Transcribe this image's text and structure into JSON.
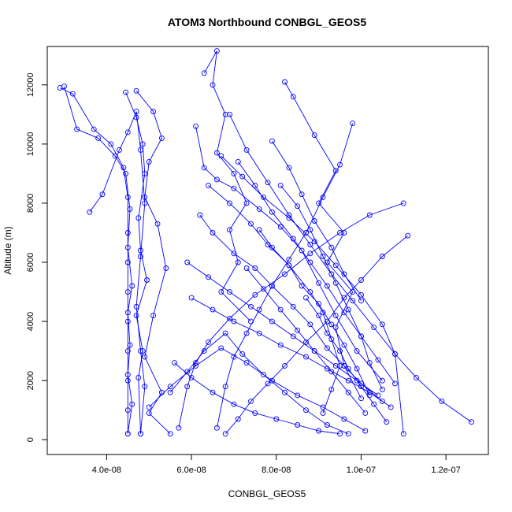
{
  "chart_data": {
    "type": "scatter",
    "title": "ATOM3 Northbound CONBGL_GEOS5",
    "xlabel": "CONBGL_GEOS5",
    "ylabel": "Altitude (m)",
    "xlim": [
      2.6e-08,
      1.3e-07
    ],
    "ylim": [
      -500,
      13300
    ],
    "x_ticks": [
      {
        "value": 4e-08,
        "label": "4.0e-08"
      },
      {
        "value": 6e-08,
        "label": "6.0e-08"
      },
      {
        "value": 8e-08,
        "label": "8.0e-08"
      },
      {
        "value": 1e-07,
        "label": "1.0e-07"
      },
      {
        "value": 1.2e-07,
        "label": "1.2e-07"
      }
    ],
    "y_ticks": [
      {
        "value": 0,
        "label": "0"
      },
      {
        "value": 2000,
        "label": "2000"
      },
      {
        "value": 4000,
        "label": "4000"
      },
      {
        "value": 6000,
        "label": "6000"
      },
      {
        "value": 8000,
        "label": "8000"
      },
      {
        "value": 10000,
        "label": "10000"
      },
      {
        "value": 12000,
        "label": "12000"
      }
    ],
    "grid": false,
    "marker": "open-circle",
    "connected": true,
    "color": "#0000ff",
    "series": [
      {
        "x": [
          2.9e-08,
          3.2e-08,
          3.7e-08,
          4.1e-08,
          4.4e-08,
          4.5e-08,
          4.5e-08,
          4.5e-08,
          4.5e-08,
          4.5e-08,
          4.5e-08,
          4.5e-08,
          4.5e-08,
          4.5e-08
        ],
        "y": [
          11900,
          11700,
          10500,
          10000,
          9200,
          8200,
          7000,
          6000,
          5000,
          4000,
          3000,
          2000,
          1000,
          200
        ]
      },
      {
        "x": [
          3e-08,
          3.3e-08,
          3.8e-08,
          4.2e-08,
          4.45e-08,
          4.55e-08,
          4.5e-08,
          4.6e-08,
          4.5e-08,
          4.55e-08,
          4.5e-08,
          4.6e-08,
          4.5e-08
        ],
        "y": [
          11950,
          10500,
          10200,
          9600,
          9000,
          7800,
          6500,
          5200,
          4300,
          3200,
          2200,
          1200,
          200
        ]
      },
      {
        "x": [
          3.6e-08,
          3.9e-08,
          4.3e-08,
          4.5e-08,
          4.7e-08,
          4.8e-08,
          4.9e-08,
          4.8e-08,
          4.7e-08,
          4.8e-08,
          4.9e-08,
          4.8e-08
        ],
        "y": [
          7700,
          8300,
          9800,
          10400,
          11100,
          9800,
          8000,
          6200,
          4500,
          3000,
          1800,
          200
        ]
      },
      {
        "x": [
          4.45e-08,
          4.7e-08,
          4.85e-08,
          4.9e-08,
          4.75e-08,
          4.8e-08,
          4.95e-08,
          4.7e-08,
          4.85e-08,
          4.75e-08,
          4.8e-08
        ],
        "y": [
          11750,
          10900,
          10000,
          9000,
          7500,
          6400,
          5400,
          4200,
          3000,
          2100,
          200
        ]
      },
      {
        "x": [
          4.7e-08,
          5.1e-08,
          5.3e-08,
          5e-08,
          4.9e-08,
          5.2e-08,
          5.4e-08,
          5.1e-08,
          4.9e-08,
          5.3e-08,
          5e-08,
          5.5e-08
        ],
        "y": [
          11800,
          11100,
          10200,
          9400,
          8200,
          7300,
          5800,
          4200,
          2800,
          1600,
          900,
          200
        ]
      },
      {
        "x": [
          6.3e-08,
          6.6e-08,
          6.5e-08,
          6.8e-08,
          6.6e-08,
          7e-08,
          7.3e-08,
          6.9e-08,
          7.1e-08,
          6.7e-08,
          7.4e-08
        ],
        "y": [
          12400,
          13150,
          12000,
          11000,
          9700,
          9000,
          8000,
          7100,
          6000,
          5000,
          4000
        ]
      },
      {
        "x": [
          6.1e-08,
          6.3e-08,
          6.6e-08,
          7e-08,
          7.6e-08,
          8.1e-08,
          8.6e-08,
          9e-08,
          9.4e-08,
          9.9e-08,
          1.05e-07
        ],
        "y": [
          10600,
          9200,
          8800,
          8500,
          7800,
          7200,
          6400,
          5300,
          4200,
          3000,
          2000
        ]
      },
      {
        "x": [
          6.9e-08,
          7.3e-08,
          7.8e-08,
          8.3e-08,
          8.8e-08,
          9.3e-08,
          9.8e-08,
          1.03e-07,
          1.08e-07,
          1.13e-07,
          1.19e-07,
          1.26e-07
        ],
        "y": [
          11000,
          9800,
          8700,
          7600,
          6600,
          5600,
          4700,
          3800,
          2900,
          2100,
          1300,
          600
        ]
      },
      {
        "x": [
          8.2e-08,
          8.4e-08,
          8.9e-08,
          9.4e-08,
          9e-08,
          9.6e-08,
          9.2e-08,
          9.8e-08,
          9.4e-08,
          9.6e-08,
          1e-07
        ],
        "y": [
          12100,
          11600,
          10300,
          9100,
          8000,
          7000,
          6000,
          5000,
          3800,
          2500,
          1400
        ]
      },
      {
        "x": [
          9.8e-08,
          9.5e-08,
          9.1e-08,
          8.7e-08,
          8.3e-08,
          7.9e-08,
          7.6e-08,
          7.3e-08,
          7e-08,
          6.8e-08,
          6.6e-08
        ],
        "y": [
          10700,
          9300,
          8200,
          7000,
          6100,
          5200,
          4400,
          3600,
          2800,
          1800,
          400
        ]
      },
      {
        "x": [
          1.1e-07,
          1.02e-07,
          9.5e-08,
          8.8e-08,
          8.2e-08,
          7.5e-08,
          6.9e-08,
          6.4e-08,
          6.1e-08,
          5.9e-08,
          5.7e-08
        ],
        "y": [
          8000,
          7600,
          7000,
          6300,
          5600,
          4900,
          4100,
          3300,
          2600,
          1800,
          400
        ]
      },
      {
        "x": [
          1.11e-07,
          1.05e-07,
          1e-07,
          9.6e-08,
          9.2e-08,
          8.7e-08,
          8.2e-08,
          7.8e-08,
          7.4e-08,
          7.1e-08,
          6.8e-08
        ],
        "y": [
          6900,
          6200,
          5400,
          4800,
          4000,
          3300,
          2500,
          1900,
          1300,
          700,
          200
        ]
      },
      {
        "x": [
          6.7e-08,
          7.2e-08,
          7.7e-08,
          8.3e-08,
          8.9e-08,
          9.4e-08,
          1e-07,
          1.05e-07,
          1.08e-07,
          1.1e-07
        ],
        "y": [
          9600,
          8900,
          8200,
          7500,
          6700,
          5900,
          4900,
          3900,
          2900,
          200
        ]
      },
      {
        "x": [
          6.4e-08,
          6.9e-08,
          7.4e-08,
          7.8e-08,
          8.3e-08,
          8.8e-08,
          9.1e-08,
          9.3e-08,
          9.5e-08,
          9.3e-08,
          9.1e-08
        ],
        "y": [
          8600,
          8000,
          7300,
          6600,
          5900,
          5000,
          4300,
          3400,
          2500,
          1700,
          900
        ]
      },
      {
        "x": [
          6.2e-08,
          6.5e-08,
          7e-08,
          7.5e-08,
          7.9e-08,
          8.4e-08,
          8.8e-08,
          9.2e-08,
          9.6e-08,
          1e-07,
          1.05e-07
        ],
        "y": [
          7600,
          7000,
          6300,
          5800,
          5200,
          4500,
          3900,
          3100,
          2500,
          1900,
          1300
        ]
      },
      {
        "x": [
          5.9e-08,
          6.4e-08,
          6.9e-08,
          7.4e-08,
          7.9e-08,
          8.4e-08,
          8.9e-08,
          9.4e-08,
          9.9e-08,
          1.04e-07
        ],
        "y": [
          6000,
          5500,
          5000,
          4500,
          4000,
          3500,
          3000,
          2500,
          2000,
          1500
        ]
      },
      {
        "x": [
          6e-08,
          6.5e-08,
          7e-08,
          7.6e-08,
          8.1e-08,
          8.7e-08,
          9.2e-08,
          9.7e-08,
          1.02e-07,
          1.07e-07
        ],
        "y": [
          4800,
          4400,
          4000,
          3600,
          3200,
          2800,
          2400,
          2000,
          1600,
          1100
        ]
      },
      {
        "x": [
          5.5e-08,
          5.9e-08,
          6.3e-08,
          6.8e-08,
          7.2e-08,
          7.7e-08,
          8.2e-08,
          8.7e-08,
          9.2e-08,
          9.7e-08
        ],
        "y": [
          1600,
          2300,
          3000,
          3600,
          2900,
          2200,
          1600,
          1000,
          500,
          200
        ]
      },
      {
        "x": [
          5e-08,
          5.5e-08,
          6.1e-08,
          6.7e-08,
          7.3e-08,
          7.9e-08,
          8.5e-08,
          9.1e-08,
          9.6e-08,
          1.01e-07
        ],
        "y": [
          1100,
          1800,
          2500,
          3100,
          2600,
          2000,
          1500,
          1100,
          700,
          300
        ]
      },
      {
        "x": [
          7.1e-08,
          7.5e-08,
          7.9e-08,
          8.4e-08,
          8.8e-08,
          9.2e-08,
          9.6e-08,
          1e-07,
          1.04e-07,
          1.08e-07
        ],
        "y": [
          9400,
          8600,
          7700,
          6800,
          6000,
          5200,
          4300,
          3500,
          2700,
          1900
        ]
      },
      {
        "x": [
          8.1e-08,
          8.5e-08,
          8.8e-08,
          9.1e-08,
          9.4e-08,
          9.7e-08,
          1e-07,
          1.02e-07,
          1.05e-07
        ],
        "y": [
          8600,
          7900,
          7100,
          6200,
          5300,
          4400,
          3500,
          2600,
          1700
        ]
      },
      {
        "x": [
          7.6e-08,
          7.9e-08,
          8.3e-08,
          8.6e-08,
          9e-08,
          9.3e-08,
          9.6e-08,
          9.9e-08,
          1.02e-07
        ],
        "y": [
          7100,
          6500,
          5900,
          5200,
          4600,
          3900,
          3200,
          2400,
          1500
        ]
      },
      {
        "x": [
          7.3e-08,
          7.7e-08,
          8.1e-08,
          8.5e-08,
          8.9e-08,
          9.3e-08,
          9.7e-08,
          1.01e-07
        ],
        "y": [
          5800,
          5100,
          4400,
          3700,
          3000,
          2300,
          1600,
          900
        ]
      },
      {
        "x": [
          7.9e-08,
          8.3e-08,
          8.6e-08,
          8.9e-08,
          9.3e-08,
          9.6e-08,
          1e-07
        ],
        "y": [
          10100,
          9200,
          8300,
          7400,
          6500,
          5600,
          4700
        ]
      },
      {
        "x": [
          8.7e-08,
          9e-08,
          9.2e-08,
          9.5e-08,
          9.7e-08,
          1e-07,
          1.03e-07,
          1.06e-07
        ],
        "y": [
          4800,
          4200,
          3600,
          3000,
          2400,
          1800,
          1200,
          600
        ]
      },
      {
        "x": [
          5.6e-08,
          6e-08,
          6.5e-08,
          7e-08,
          7.5e-08,
          8e-08,
          8.5e-08,
          9e-08,
          9.5e-08
        ],
        "y": [
          2600,
          2100,
          1600,
          1200,
          900,
          700,
          500,
          300,
          200
        ]
      }
    ]
  }
}
